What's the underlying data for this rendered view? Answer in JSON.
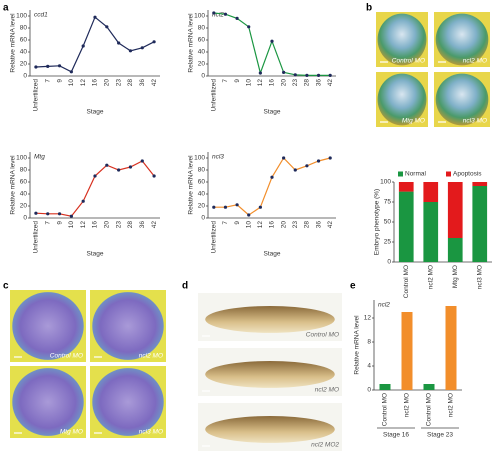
{
  "panel_labels": [
    "a",
    "b",
    "c",
    "d",
    "e"
  ],
  "chart_data": [
    {
      "type": "line",
      "title": "ccd1",
      "x_label": "Stage",
      "y_label": "Relative mRNA level",
      "color": "#1f2a5a",
      "categories": [
        "Unfertilized",
        "7",
        "9",
        "10",
        "12",
        "16",
        "20",
        "23",
        "28",
        "36",
        "42"
      ],
      "values": [
        15,
        16,
        17,
        7,
        50,
        98,
        82,
        55,
        42,
        47,
        57
      ],
      "ylim": [
        0,
        110
      ],
      "yticks": [
        0,
        20,
        40,
        60,
        80,
        100
      ]
    },
    {
      "type": "line",
      "title": "ncl2",
      "x_label": "Stage",
      "y_label": "Relative mRNA level",
      "color": "#1a9641",
      "categories": [
        "Unfertilized",
        "7",
        "9",
        "10",
        "12",
        "16",
        "20",
        "23",
        "28",
        "36",
        "42"
      ],
      "values": [
        105,
        103,
        96,
        82,
        5,
        58,
        6,
        2,
        1,
        1,
        1
      ],
      "ylim": [
        0,
        110
      ],
      "yticks": [
        0,
        20,
        40,
        60,
        80,
        100
      ]
    },
    {
      "type": "line",
      "title": "Mtg",
      "x_label": "Stage",
      "y_label": "Relative mRNA level",
      "color": "#d7301f",
      "categories": [
        "Unfertilized",
        "7",
        "9",
        "10",
        "12",
        "16",
        "20",
        "23",
        "28",
        "36",
        "42"
      ],
      "values": [
        8,
        7,
        7,
        3,
        28,
        70,
        88,
        80,
        85,
        95,
        70
      ],
      "ylim": [
        0,
        110
      ],
      "yticks": [
        0,
        20,
        40,
        60,
        80,
        100
      ]
    },
    {
      "type": "line",
      "title": "ncl3",
      "x_label": "Stage",
      "y_label": "Relative mRNA level",
      "color": "#f28e2b",
      "categories": [
        "Unfertilized",
        "7",
        "9",
        "10",
        "12",
        "16",
        "20",
        "23",
        "28",
        "36",
        "42"
      ],
      "values": [
        18,
        18,
        22,
        5,
        18,
        68,
        100,
        80,
        87,
        95,
        100
      ],
      "ylim": [
        0,
        110
      ],
      "yticks": [
        0,
        20,
        40,
        60,
        80,
        100
      ]
    },
    {
      "type": "stacked_bar",
      "y_label": "Embryo phenotype (%)",
      "categories": [
        "Control MO",
        "ncl2 MO",
        "Mtg MO",
        "ncl3 MO"
      ],
      "series": [
        {
          "name": "Normal",
          "color": "#1a9641",
          "values": [
            88,
            75,
            30,
            95
          ]
        },
        {
          "name": "Apoptosis",
          "color": "#e31a1c",
          "values": [
            12,
            25,
            70,
            5
          ]
        }
      ],
      "ylim": [
        0,
        100
      ],
      "yticks": [
        0,
        25,
        50,
        75,
        100
      ]
    },
    {
      "type": "bar",
      "title": "ncl2",
      "y_label": "Relative mRNA level",
      "categories": [
        "Control MO",
        "ncl2 MO",
        "Control MO",
        "ncl2 MO"
      ],
      "values": [
        1,
        13,
        1,
        14
      ],
      "colors": [
        "#1a9641",
        "#f28e2b",
        "#1a9641",
        "#f28e2b"
      ],
      "groups": [
        "Stage 16",
        "Stage 23"
      ],
      "ylim": [
        0,
        15
      ],
      "yticks": [
        0,
        4,
        8,
        12
      ]
    }
  ],
  "photos": {
    "b": [
      "Control MO",
      "ncl2 MO",
      "Mtg MO",
      "ncl3 MO"
    ],
    "c": [
      "Control MO",
      "ncl2 MO",
      "Mtg MO",
      "ncl3 MO"
    ],
    "d": [
      "Control MO",
      "ncl2 MO",
      "ncl2 MO2"
    ]
  }
}
